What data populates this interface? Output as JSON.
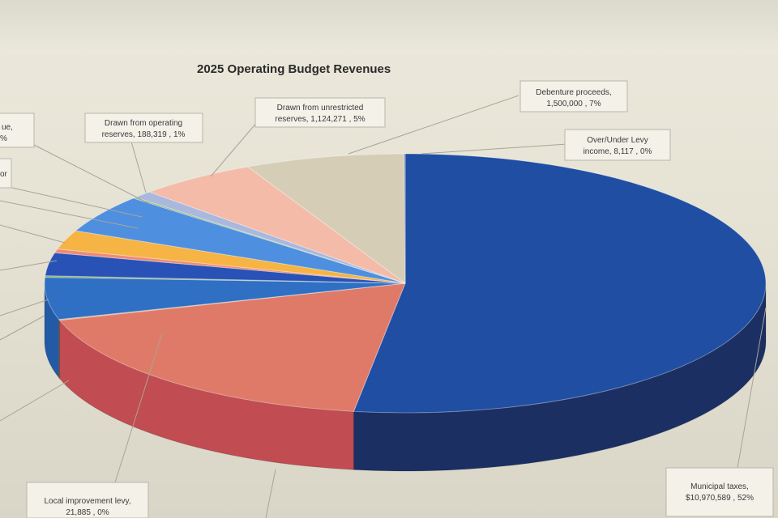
{
  "chart_data": {
    "type": "pie",
    "title": "2025 Operating Budget Revenues",
    "slices": [
      {
        "label": "Municipal taxes",
        "value": 10970589,
        "percent": "52%",
        "color": "#1f4ea3",
        "side": "#1b2f63"
      },
      {
        "label": "",
        "value": 3800000,
        "percent": "",
        "color": "#e07a68",
        "side": "#c14c52"
      },
      {
        "label": "Local improvement levy",
        "value": 21885,
        "percent": "0%",
        "color": "#c9955a",
        "side": "#9c7044"
      },
      {
        "label": "",
        "value": 1100000,
        "percent": "",
        "color": "#2f6fc4",
        "side": "#235aa5"
      },
      {
        "label": "",
        "value": 40000,
        "percent": "",
        "color": "#7fa96b",
        "side": "#5e8a52"
      },
      {
        "label": "",
        "value": 600000,
        "percent": "",
        "color": "#2852b5",
        "side": "#1f3e86"
      },
      {
        "label": "",
        "value": 100000,
        "percent": "",
        "color": "#f08a76",
        "side": "#c8625a"
      },
      {
        "label": "",
        "value": 500000,
        "percent": "",
        "color": "#f5b443",
        "side": "#c98d2c"
      },
      {
        "label": "",
        "value": 1000000,
        "percent": "",
        "color": "#4f8fe0",
        "side": "#3b71bb"
      },
      {
        "label": "",
        "value": 30000,
        "percent": "",
        "color": "#8fb874",
        "side": "#6a9055"
      },
      {
        "label": "Drawn from operating reserves",
        "value": 188319,
        "percent": "1%",
        "color": "#a9b8dc",
        "side": "#8593b6"
      },
      {
        "label": "Drawn from unrestricted reserves",
        "value": 1124271,
        "percent": "5%",
        "color": "#f4bba8",
        "side": "#d49684"
      },
      {
        "label": "Debenture proceeds",
        "value": 1500000,
        "percent": "7%",
        "color": "#d6cdb6",
        "side": "#b3aa94"
      },
      {
        "label": "Over/Under Levy income",
        "value": 8117,
        "percent": "0%",
        "color": "#3e62b8",
        "side": "#2a4684"
      }
    ]
  },
  "callouts": {
    "title": "2025 Operating Budget Revenues",
    "debenture": {
      "line1": "Debenture proceeds,",
      "line2": "1,500,000 , 7%"
    },
    "levy": {
      "line1": "Over/Under Levy",
      "line2": "income, 8,117 , 0%"
    },
    "unrestricted": {
      "line1": "Drawn from unrestricted",
      "line2": "reserves, 1,124,271 , 5%"
    },
    "operating": {
      "line1": "Drawn from operating",
      "line2": "reserves, 188,319 , 1%"
    },
    "local": {
      "line1": "Local improvement levy,",
      "line2": "21,885 , 0%"
    },
    "municipal": {
      "line1": "Municipal taxes,",
      "line2": "$10,970,589 , 52%"
    },
    "cut_a": {
      "line1": "ue,",
      "line2": "%"
    },
    "cut_b": {
      "line1": "or"
    }
  }
}
